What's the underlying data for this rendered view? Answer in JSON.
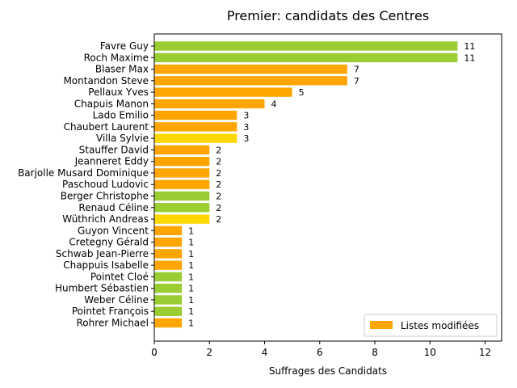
{
  "chart_data": {
    "type": "bar",
    "orientation": "horizontal",
    "title": "Premier: candidats des Centres",
    "xlabel": "Suffrages des Candidats",
    "ylabel": "",
    "xlim": [
      0,
      12.6
    ],
    "xticks": [
      0,
      2,
      4,
      6,
      8,
      10,
      12
    ],
    "grid": false,
    "categories": [
      "Favre Guy",
      "Roch Maxime",
      "Blaser Max",
      "Montandon Steve",
      "Pellaux Yves",
      "Chapuis Manon",
      "Lado Emilio",
      "Chaubert Laurent",
      "Villa Sylvie",
      "Stauffer David",
      "Jeanneret Eddy",
      "Barjolle Musard Dominique",
      "Paschoud Ludovic",
      "Berger Christophe",
      "Renaud Céline",
      "Wüthrich Andreas",
      "Guyon Vincent",
      "Cretegny Gérald",
      "Schwab Jean-Pierre",
      "Chappuis Isabelle",
      "Pointet Cloé",
      "Humbert Sébastien",
      "Weber Céline",
      "Pointet François",
      "Rohrer Michael"
    ],
    "values": [
      11,
      11,
      7,
      7,
      5,
      4,
      3,
      3,
      3,
      2,
      2,
      2,
      2,
      2,
      2,
      2,
      1,
      1,
      1,
      1,
      1,
      1,
      1,
      1,
      1
    ],
    "bar_colors": [
      "#9acd32",
      "#9acd32",
      "#ffa500",
      "#ffa500",
      "#ffa500",
      "#ffa500",
      "#ffa500",
      "#ffa500",
      "#ffd700",
      "#ffa500",
      "#ffa500",
      "#ffa500",
      "#ffa500",
      "#9acd32",
      "#9acd32",
      "#ffd700",
      "#ffa500",
      "#ffa500",
      "#ffa500",
      "#ffa500",
      "#9acd32",
      "#9acd32",
      "#9acd32",
      "#9acd32",
      "#ffa500"
    ],
    "legend": {
      "position": "lower-right",
      "entries": [
        {
          "label": "Listes modifiées",
          "color": "#ffa500"
        }
      ]
    }
  }
}
